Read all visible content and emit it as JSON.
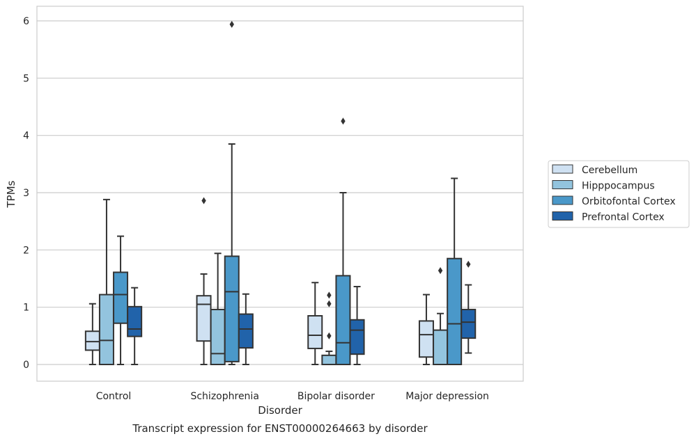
{
  "chart_data": {
    "type": "boxplot",
    "title": "",
    "caption": "Transcript expression for ENST00000264663 by disorder",
    "xlabel": "Disorder",
    "ylabel": "TPMs",
    "ylim": [
      -0.3,
      6.25
    ],
    "yticks": [
      0,
      1,
      2,
      3,
      4,
      5,
      6
    ],
    "grid": "horizontal",
    "legend_position": "right",
    "categories": [
      "Control",
      "Schizophrenia",
      "Bipolar disorder",
      "Major depression"
    ],
    "series": [
      {
        "name": "Cerebellum",
        "color": "#cfe1f2",
        "boxes": [
          {
            "whislo": 0.0,
            "q1": 0.25,
            "med": 0.4,
            "q3": 0.58,
            "whishi": 1.06,
            "fliers": []
          },
          {
            "whislo": 0.0,
            "q1": 0.41,
            "med": 1.05,
            "q3": 1.2,
            "whishi": 1.58,
            "fliers": [
              2.86
            ]
          },
          {
            "whislo": 0.0,
            "q1": 0.28,
            "med": 0.51,
            "q3": 0.85,
            "whishi": 1.43,
            "fliers": []
          },
          {
            "whislo": 0.0,
            "q1": 0.13,
            "med": 0.52,
            "q3": 0.76,
            "whishi": 1.22,
            "fliers": []
          }
        ]
      },
      {
        "name": "Hipppocampus",
        "color": "#93c4de",
        "boxes": [
          {
            "whislo": 0.0,
            "q1": 0.0,
            "med": 0.42,
            "q3": 1.22,
            "whishi": 2.88,
            "fliers": []
          },
          {
            "whislo": 0.0,
            "q1": 0.0,
            "med": 0.19,
            "q3": 0.96,
            "whishi": 1.94,
            "fliers": []
          },
          {
            "whislo": 0.0,
            "q1": 0.0,
            "med": 0.0,
            "q3": 0.16,
            "whishi": 0.23,
            "fliers": [
              0.5,
              1.06,
              1.21
            ]
          },
          {
            "whislo": 0.0,
            "q1": 0.0,
            "med": 0.0,
            "q3": 0.6,
            "whishi": 0.89,
            "fliers": [
              1.64
            ]
          }
        ]
      },
      {
        "name": "Orbitofontal Cortex",
        "color": "#4a98c9",
        "boxes": [
          {
            "whislo": 0.0,
            "q1": 0.72,
            "med": 1.22,
            "q3": 1.61,
            "whishi": 2.24,
            "fliers": []
          },
          {
            "whislo": 0.0,
            "q1": 0.05,
            "med": 1.27,
            "q3": 1.89,
            "whishi": 3.85,
            "fliers": [
              5.94
            ]
          },
          {
            "whislo": 0.0,
            "q1": 0.0,
            "med": 0.38,
            "q3": 1.55,
            "whishi": 3.0,
            "fliers": [
              4.25
            ]
          },
          {
            "whislo": 0.0,
            "q1": 0.0,
            "med": 0.71,
            "q3": 1.85,
            "whishi": 3.25,
            "fliers": []
          }
        ]
      },
      {
        "name": "Prefrontal Cortex",
        "color": "#2163aa",
        "boxes": [
          {
            "whislo": 0.0,
            "q1": 0.49,
            "med": 0.62,
            "q3": 1.01,
            "whishi": 1.34,
            "fliers": []
          },
          {
            "whislo": 0.0,
            "q1": 0.29,
            "med": 0.62,
            "q3": 0.88,
            "whishi": 1.23,
            "fliers": []
          },
          {
            "whislo": 0.0,
            "q1": 0.18,
            "med": 0.6,
            "q3": 0.78,
            "whishi": 1.36,
            "fliers": []
          },
          {
            "whislo": 0.2,
            "q1": 0.46,
            "med": 0.74,
            "q3": 0.96,
            "whishi": 1.39,
            "fliers": [
              1.75
            ]
          }
        ]
      }
    ]
  }
}
